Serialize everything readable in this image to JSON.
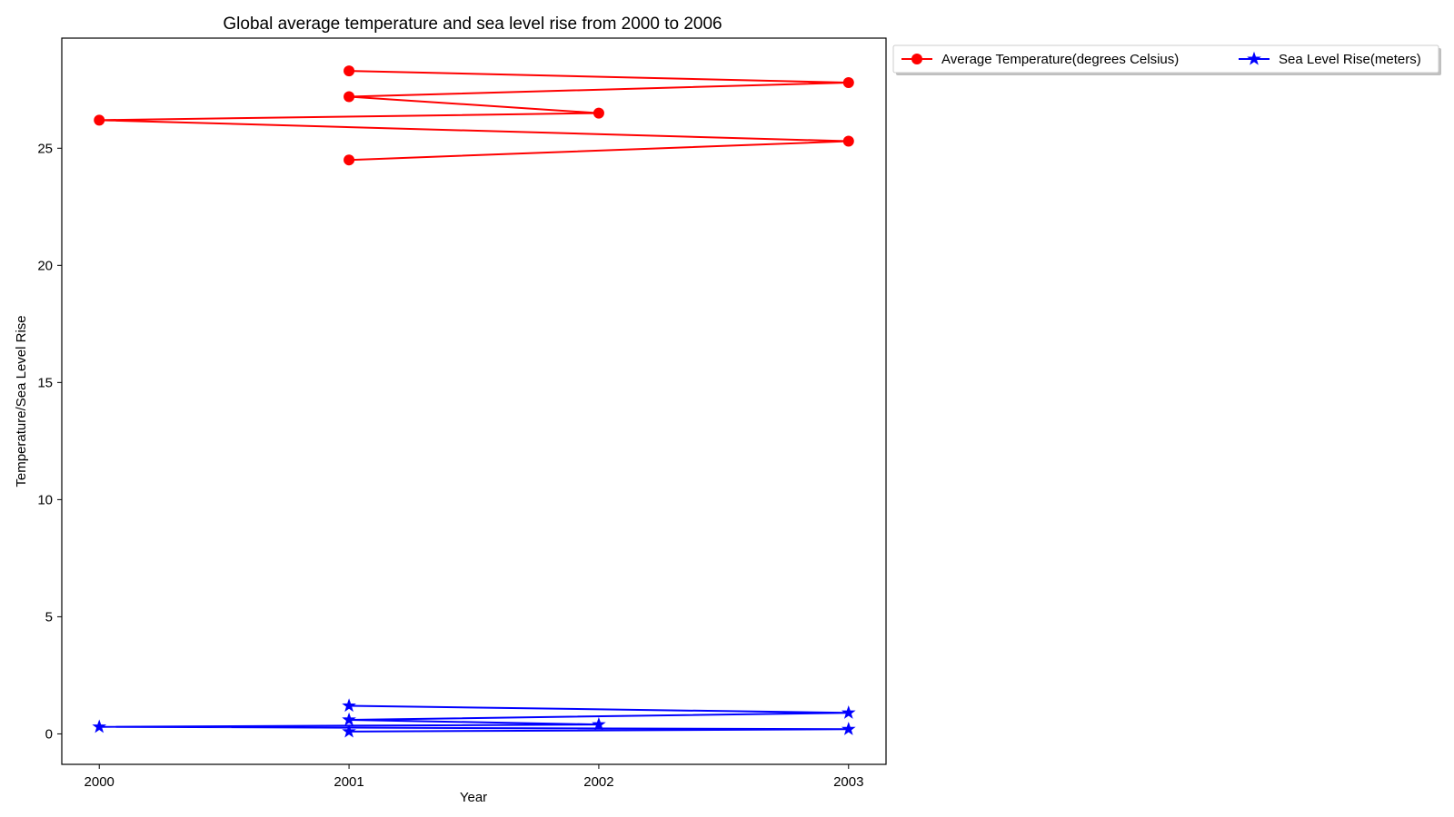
{
  "chart_data": {
    "type": "line",
    "title": "Global average temperature and sea level rise from 2000 to 2006",
    "xlabel": "Year",
    "ylabel": "Temperature/Sea Level Rise",
    "xlim": [
      1999.85,
      2003.15
    ],
    "ylim": [
      -1.3,
      29.7
    ],
    "xticks": [
      2000,
      2001,
      2002,
      2003
    ],
    "yticks": [
      0,
      5,
      10,
      15,
      20,
      25
    ],
    "grid": false,
    "legend_position": "outside-top-right",
    "series": [
      {
        "name": "Average Temperature(degrees Celsius)",
        "color": "#ff0000",
        "marker": "circle",
        "x": [
          2001,
          2003,
          2000,
          2002,
          2001,
          2003,
          2001
        ],
        "y": [
          24.5,
          25.3,
          26.2,
          26.5,
          27.2,
          27.8,
          28.3
        ]
      },
      {
        "name": "Sea Level Rise(meters)",
        "color": "#0000ff",
        "marker": "star",
        "x": [
          2001,
          2003,
          2000,
          2002,
          2001,
          2003,
          2001
        ],
        "y": [
          0.1,
          0.2,
          0.3,
          0.4,
          0.6,
          0.9,
          1.2
        ]
      }
    ]
  }
}
